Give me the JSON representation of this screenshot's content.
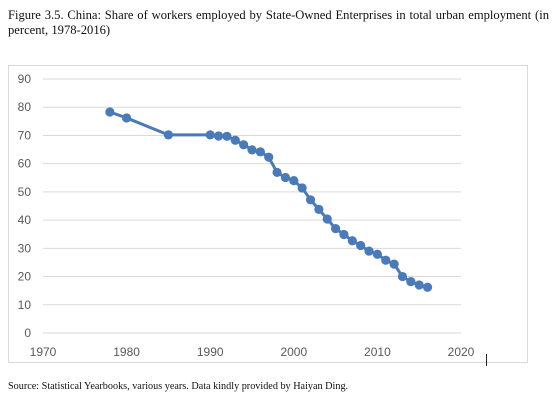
{
  "figure": {
    "title": "Figure 3.5. China: Share of workers employed by State-Owned Enterprises in total urban employment (in percent, 1978-2016)",
    "source": "Source: Statistical Yearbooks, various years. Data kindly provided by Haiyan Ding."
  },
  "chart_data": {
    "type": "line",
    "title": "",
    "xlabel": "",
    "ylabel": "",
    "xlim": [
      1970,
      2020
    ],
    "ylim": [
      0,
      90
    ],
    "xticks": [
      1970,
      1980,
      1990,
      2000,
      2010,
      2020
    ],
    "yticks": [
      0,
      10,
      20,
      30,
      40,
      50,
      60,
      70,
      80,
      90
    ],
    "grid": "horizontal",
    "legend": "none",
    "color": "#4a7ab8",
    "series": [
      {
        "x": [
          1978,
          1980,
          1985,
          1990,
          1991,
          1992,
          1993,
          1994,
          1995,
          1996,
          1997,
          1998,
          1999,
          2000,
          2001,
          2002,
          2003,
          2004,
          2005,
          2006,
          2007,
          2008,
          2009,
          2010,
          2011,
          2012,
          2013,
          2014,
          2015,
          2016
        ],
        "values": [
          78.3,
          76.2,
          70.2,
          70.2,
          69.8,
          69.7,
          68.3,
          66.7,
          64.9,
          64.2,
          62.3,
          56.9,
          55.1,
          54.0,
          51.4,
          47.2,
          43.8,
          40.4,
          37.0,
          34.9,
          32.7,
          31.0,
          29.0,
          27.9,
          25.8,
          24.4,
          20.0,
          18.2,
          17.0,
          16.2
        ]
      }
    ]
  }
}
